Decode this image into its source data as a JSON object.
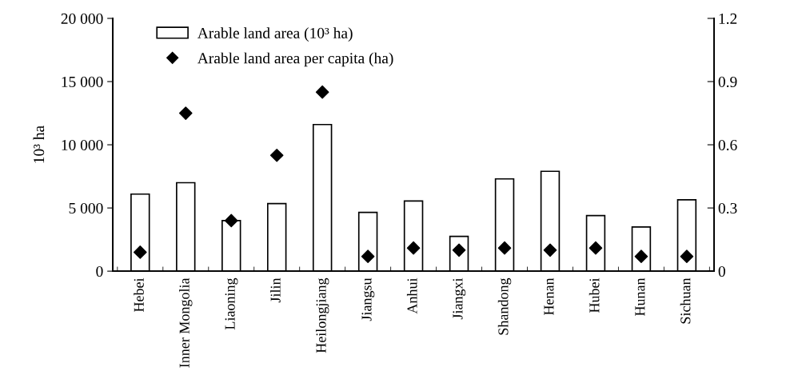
{
  "chart_data": {
    "type": "bar",
    "ylabel": "10³ ha",
    "categories": [
      "Hebei",
      "Inner Mongolia",
      "Liaoning",
      "Jilin",
      "Heilongjiang",
      "Jiangsu",
      "Anhui",
      "Jiangxi",
      "Shandong",
      "Henan",
      "Hubei",
      "Hunan",
      "Sichuan"
    ],
    "series": [
      {
        "name": "Arable land area (10³ ha)",
        "color": "#ffffff",
        "values": [
          6100,
          7000,
          4000,
          5350,
          11600,
          4650,
          5550,
          2750,
          7300,
          7900,
          4400,
          3500,
          5650
        ]
      },
      {
        "name": "Arable land area per capita (ha)",
        "type": "scatter",
        "axis": "y2",
        "color": "#000000",
        "marker": "diamond",
        "values": [
          0.09,
          0.75,
          0.24,
          0.55,
          0.85,
          0.07,
          0.11,
          0.1,
          0.11,
          0.1,
          0.11,
          0.07,
          0.07
        ]
      }
    ],
    "ylim": [
      0,
      20000
    ],
    "yticks": [
      {
        "value": 0,
        "label": "0"
      },
      {
        "value": 5000,
        "label": "5 000"
      },
      {
        "value": 10000,
        "label": "10 000"
      },
      {
        "value": 15000,
        "label": "15 000"
      },
      {
        "value": 20000,
        "label": "20 000"
      }
    ],
    "y2lim": [
      0,
      1.2
    ],
    "y2ticks": [
      0,
      0.3,
      0.6,
      0.9,
      1.2
    ],
    "legend": "top left",
    "grid": false
  }
}
